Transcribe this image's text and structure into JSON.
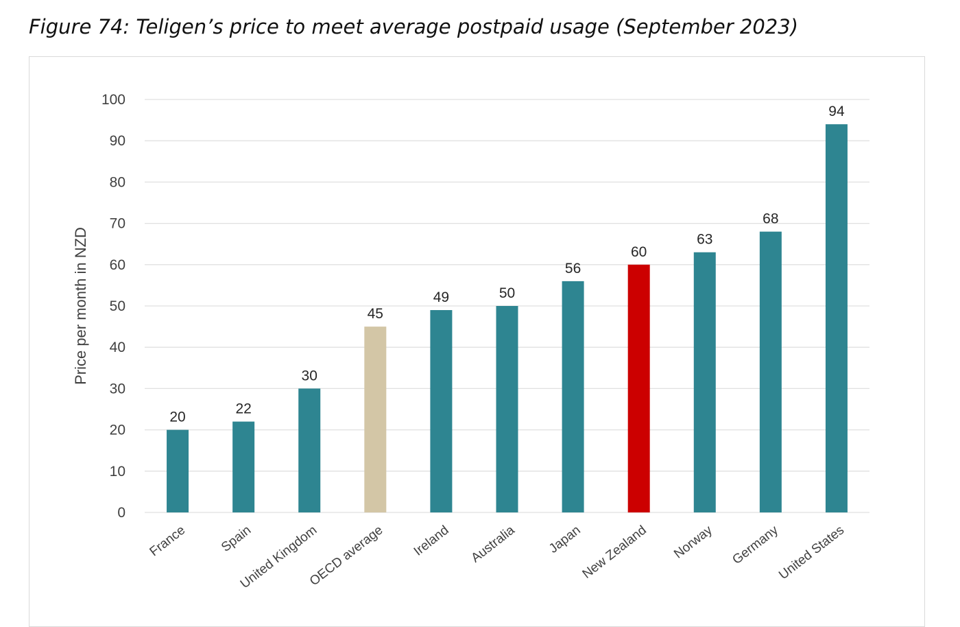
{
  "figure_title": "Figure 74: Teligen’s price to meet average postpaid usage (September 2023)",
  "colors": {
    "default_bar": "#2e8591",
    "oecd_bar": "#d3c6a6",
    "new_zealand_bar": "#cc0000",
    "gridline": "#e0e0e0"
  },
  "chart_data": {
    "type": "bar",
    "title": "",
    "xlabel": "",
    "ylabel": "Price per month in NZD",
    "ylim": [
      0,
      100
    ],
    "yticks": [
      0,
      10,
      20,
      30,
      40,
      50,
      60,
      70,
      80,
      90,
      100
    ],
    "grid": true,
    "legend": "none",
    "categories": [
      "France",
      "Spain",
      "United Kingdom",
      "OECD average",
      "Ireland",
      "Australia",
      "Japan",
      "New Zealand",
      "Norway",
      "Germany",
      "United States"
    ],
    "values": [
      20,
      22,
      30,
      45,
      49,
      50,
      56,
      60,
      63,
      68,
      94
    ],
    "highlight": {
      "OECD average": "oecd_bar",
      "New Zealand": "new_zealand_bar"
    }
  }
}
